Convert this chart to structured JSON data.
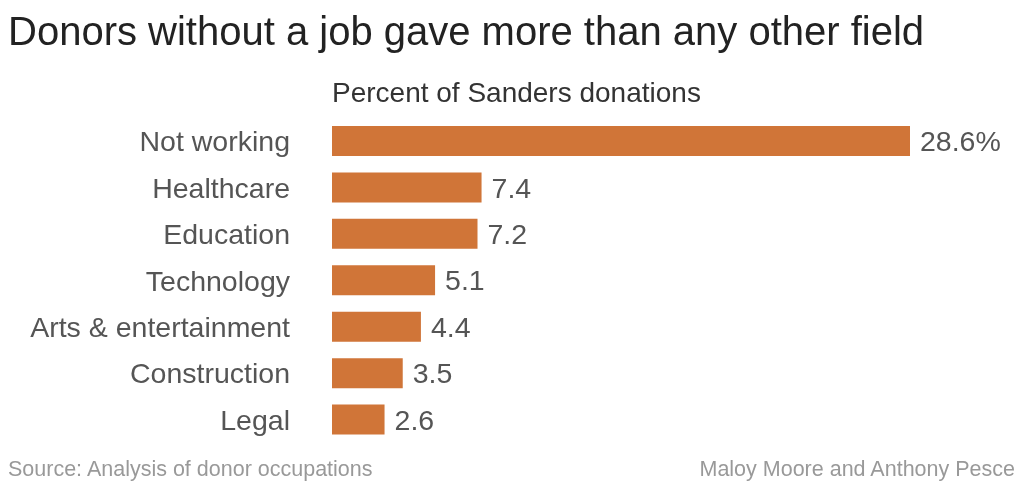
{
  "chart_data": {
    "type": "bar",
    "orientation": "horizontal",
    "title": "Donors without a job gave more than any other field",
    "subtitle": "Percent of Sanders donations",
    "categories": [
      "Not working",
      "Healthcare",
      "Education",
      "Technology",
      "Arts & entertainment",
      "Construction",
      "Legal"
    ],
    "values": [
      28.6,
      7.4,
      7.2,
      5.1,
      4.4,
      3.5,
      2.6
    ],
    "color": "#d07538",
    "value_labels": [
      "28.6%",
      "7.4",
      "7.2",
      "5.1",
      "4.4",
      "3.5",
      "2.6"
    ],
    "annotations": [
      "Source: Analysis of donor occupations",
      "Maloy Moore and Anthony Pesce"
    ]
  }
}
